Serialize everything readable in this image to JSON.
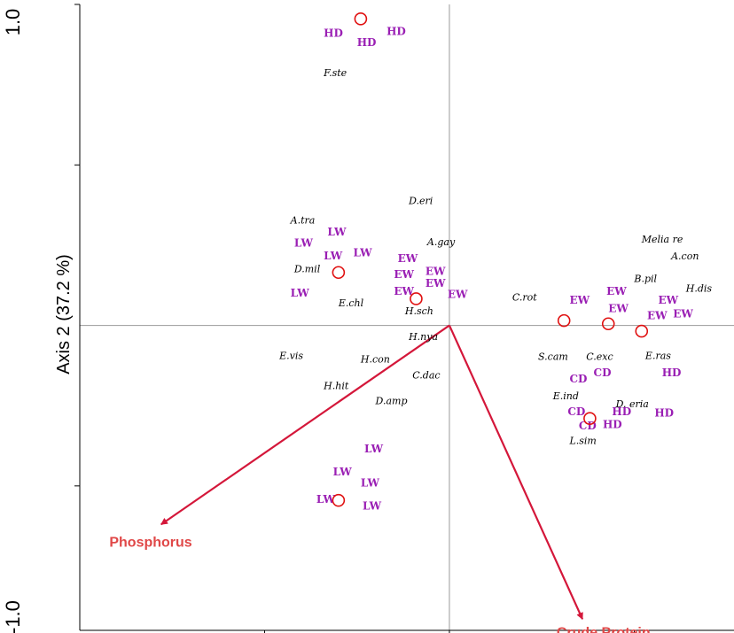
{
  "chart_data": {
    "type": "scatter",
    "ylabel": "Axis 2 (37.2 %)",
    "xlim": [
      -1.0,
      0.77
    ],
    "ylim": [
      -0.95,
      1.0
    ],
    "y_tick_values": [
      1.0,
      0.5,
      -0.5
    ],
    "y_tick_labels": [
      "1.0",
      "",
      ""
    ],
    "y_bottom_label": "-1.0",
    "x_tick_values": [
      -0.5,
      0.0,
      0.5
    ],
    "colors": {
      "group_label": "#9a1fb4",
      "centroid": "#e01010",
      "vector": "#d4173a",
      "vector_label": "#e04848",
      "axis": "#000000",
      "crosshair": "#9a9a9a"
    },
    "centroids": [
      {
        "x": -0.24,
        "y": 0.955
      },
      {
        "x": -0.3,
        "y": 0.165
      },
      {
        "x": -0.09,
        "y": 0.083
      },
      {
        "x": 0.31,
        "y": 0.015
      },
      {
        "x": 0.43,
        "y": 0.005
      },
      {
        "x": 0.52,
        "y": -0.018
      },
      {
        "x": 0.38,
        "y": -0.29
      },
      {
        "x": -0.3,
        "y": -0.545
      }
    ],
    "group_labels": [
      {
        "text": "HD",
        "x": -0.34,
        "y": 0.9
      },
      {
        "text": "HD",
        "x": -0.25,
        "y": 0.87
      },
      {
        "text": "HD",
        "x": -0.17,
        "y": 0.905
      },
      {
        "text": "LW",
        "x": -0.33,
        "y": 0.28
      },
      {
        "text": "LW",
        "x": -0.42,
        "y": 0.245
      },
      {
        "text": "LW",
        "x": -0.34,
        "y": 0.205
      },
      {
        "text": "LW",
        "x": -0.26,
        "y": 0.215
      },
      {
        "text": "LW",
        "x": -0.43,
        "y": 0.09
      },
      {
        "text": "EW",
        "x": -0.14,
        "y": 0.198
      },
      {
        "text": "EW",
        "x": -0.15,
        "y": 0.148
      },
      {
        "text": "EW",
        "x": -0.065,
        "y": 0.158
      },
      {
        "text": "EW",
        "x": -0.065,
        "y": 0.12
      },
      {
        "text": "EW",
        "x": -0.15,
        "y": 0.095
      },
      {
        "text": "EW",
        "x": -0.005,
        "y": 0.085
      },
      {
        "text": "EW",
        "x": 0.325,
        "y": 0.068
      },
      {
        "text": "EW",
        "x": 0.425,
        "y": 0.095
      },
      {
        "text": "EW",
        "x": 0.43,
        "y": 0.042
      },
      {
        "text": "EW",
        "x": 0.565,
        "y": 0.068
      },
      {
        "text": "EW",
        "x": 0.535,
        "y": 0.02
      },
      {
        "text": "EW",
        "x": 0.605,
        "y": 0.025
      },
      {
        "text": "CD",
        "x": 0.325,
        "y": -0.178
      },
      {
        "text": "CD",
        "x": 0.39,
        "y": -0.158
      },
      {
        "text": "HD",
        "x": 0.575,
        "y": -0.158
      },
      {
        "text": "CD",
        "x": 0.32,
        "y": -0.28
      },
      {
        "text": "HD",
        "x": 0.44,
        "y": -0.28
      },
      {
        "text": "HD",
        "x": 0.555,
        "y": -0.284
      },
      {
        "text": "CD",
        "x": 0.35,
        "y": -0.324
      },
      {
        "text": "HD",
        "x": 0.415,
        "y": -0.32
      },
      {
        "text": "LW",
        "x": -0.23,
        "y": -0.395
      },
      {
        "text": "LW",
        "x": -0.315,
        "y": -0.468
      },
      {
        "text": "LW",
        "x": -0.24,
        "y": -0.502
      },
      {
        "text": "LW",
        "x": -0.36,
        "y": -0.553
      },
      {
        "text": "LW",
        "x": -0.235,
        "y": -0.574
      }
    ],
    "species": [
      {
        "text": "F.ste",
        "x": -0.34,
        "y": 0.777
      },
      {
        "text": "D.eri",
        "x": -0.11,
        "y": 0.378
      },
      {
        "text": "A.tra",
        "x": -0.43,
        "y": 0.317
      },
      {
        "text": "A.gay",
        "x": -0.06,
        "y": 0.25
      },
      {
        "text": "D.mil",
        "x": -0.42,
        "y": 0.165
      },
      {
        "text": "E.chl",
        "x": -0.3,
        "y": 0.06
      },
      {
        "text": "H.sch",
        "x": -0.12,
        "y": 0.035
      },
      {
        "text": "C.rot",
        "x": 0.17,
        "y": 0.078
      },
      {
        "text": "Melia re",
        "x": 0.52,
        "y": 0.258
      },
      {
        "text": "A.con",
        "x": 0.6,
        "y": 0.205
      },
      {
        "text": "B.pil",
        "x": 0.5,
        "y": 0.135
      },
      {
        "text": "H.dis",
        "x": 0.64,
        "y": 0.105
      },
      {
        "text": "H.nya",
        "x": -0.11,
        "y": -0.045
      },
      {
        "text": "E.vis",
        "x": -0.46,
        "y": -0.105
      },
      {
        "text": "H.con",
        "x": -0.24,
        "y": -0.115
      },
      {
        "text": "C.dac",
        "x": -0.1,
        "y": -0.165
      },
      {
        "text": "H.hit",
        "x": -0.34,
        "y": -0.198
      },
      {
        "text": "D.amp",
        "x": -0.2,
        "y": -0.245
      },
      {
        "text": "S.cam",
        "x": 0.24,
        "y": -0.108
      },
      {
        "text": "C.exc",
        "x": 0.37,
        "y": -0.108
      },
      {
        "text": "E.ras",
        "x": 0.53,
        "y": -0.105
      },
      {
        "text": "E.ind",
        "x": 0.28,
        "y": -0.23
      },
      {
        "text": "D. eria",
        "x": 0.45,
        "y": -0.255
      },
      {
        "text": "L.sim",
        "x": 0.325,
        "y": -0.37
      }
    ],
    "vectors": [
      {
        "name": "Phosphorus",
        "x": -0.78,
        "y": -0.62,
        "label_x": -0.92,
        "label_y": -0.69
      },
      {
        "name": "Crude Protein",
        "x": 0.36,
        "y": -0.915,
        "label_x": 0.29,
        "label_y": -0.97
      }
    ]
  }
}
